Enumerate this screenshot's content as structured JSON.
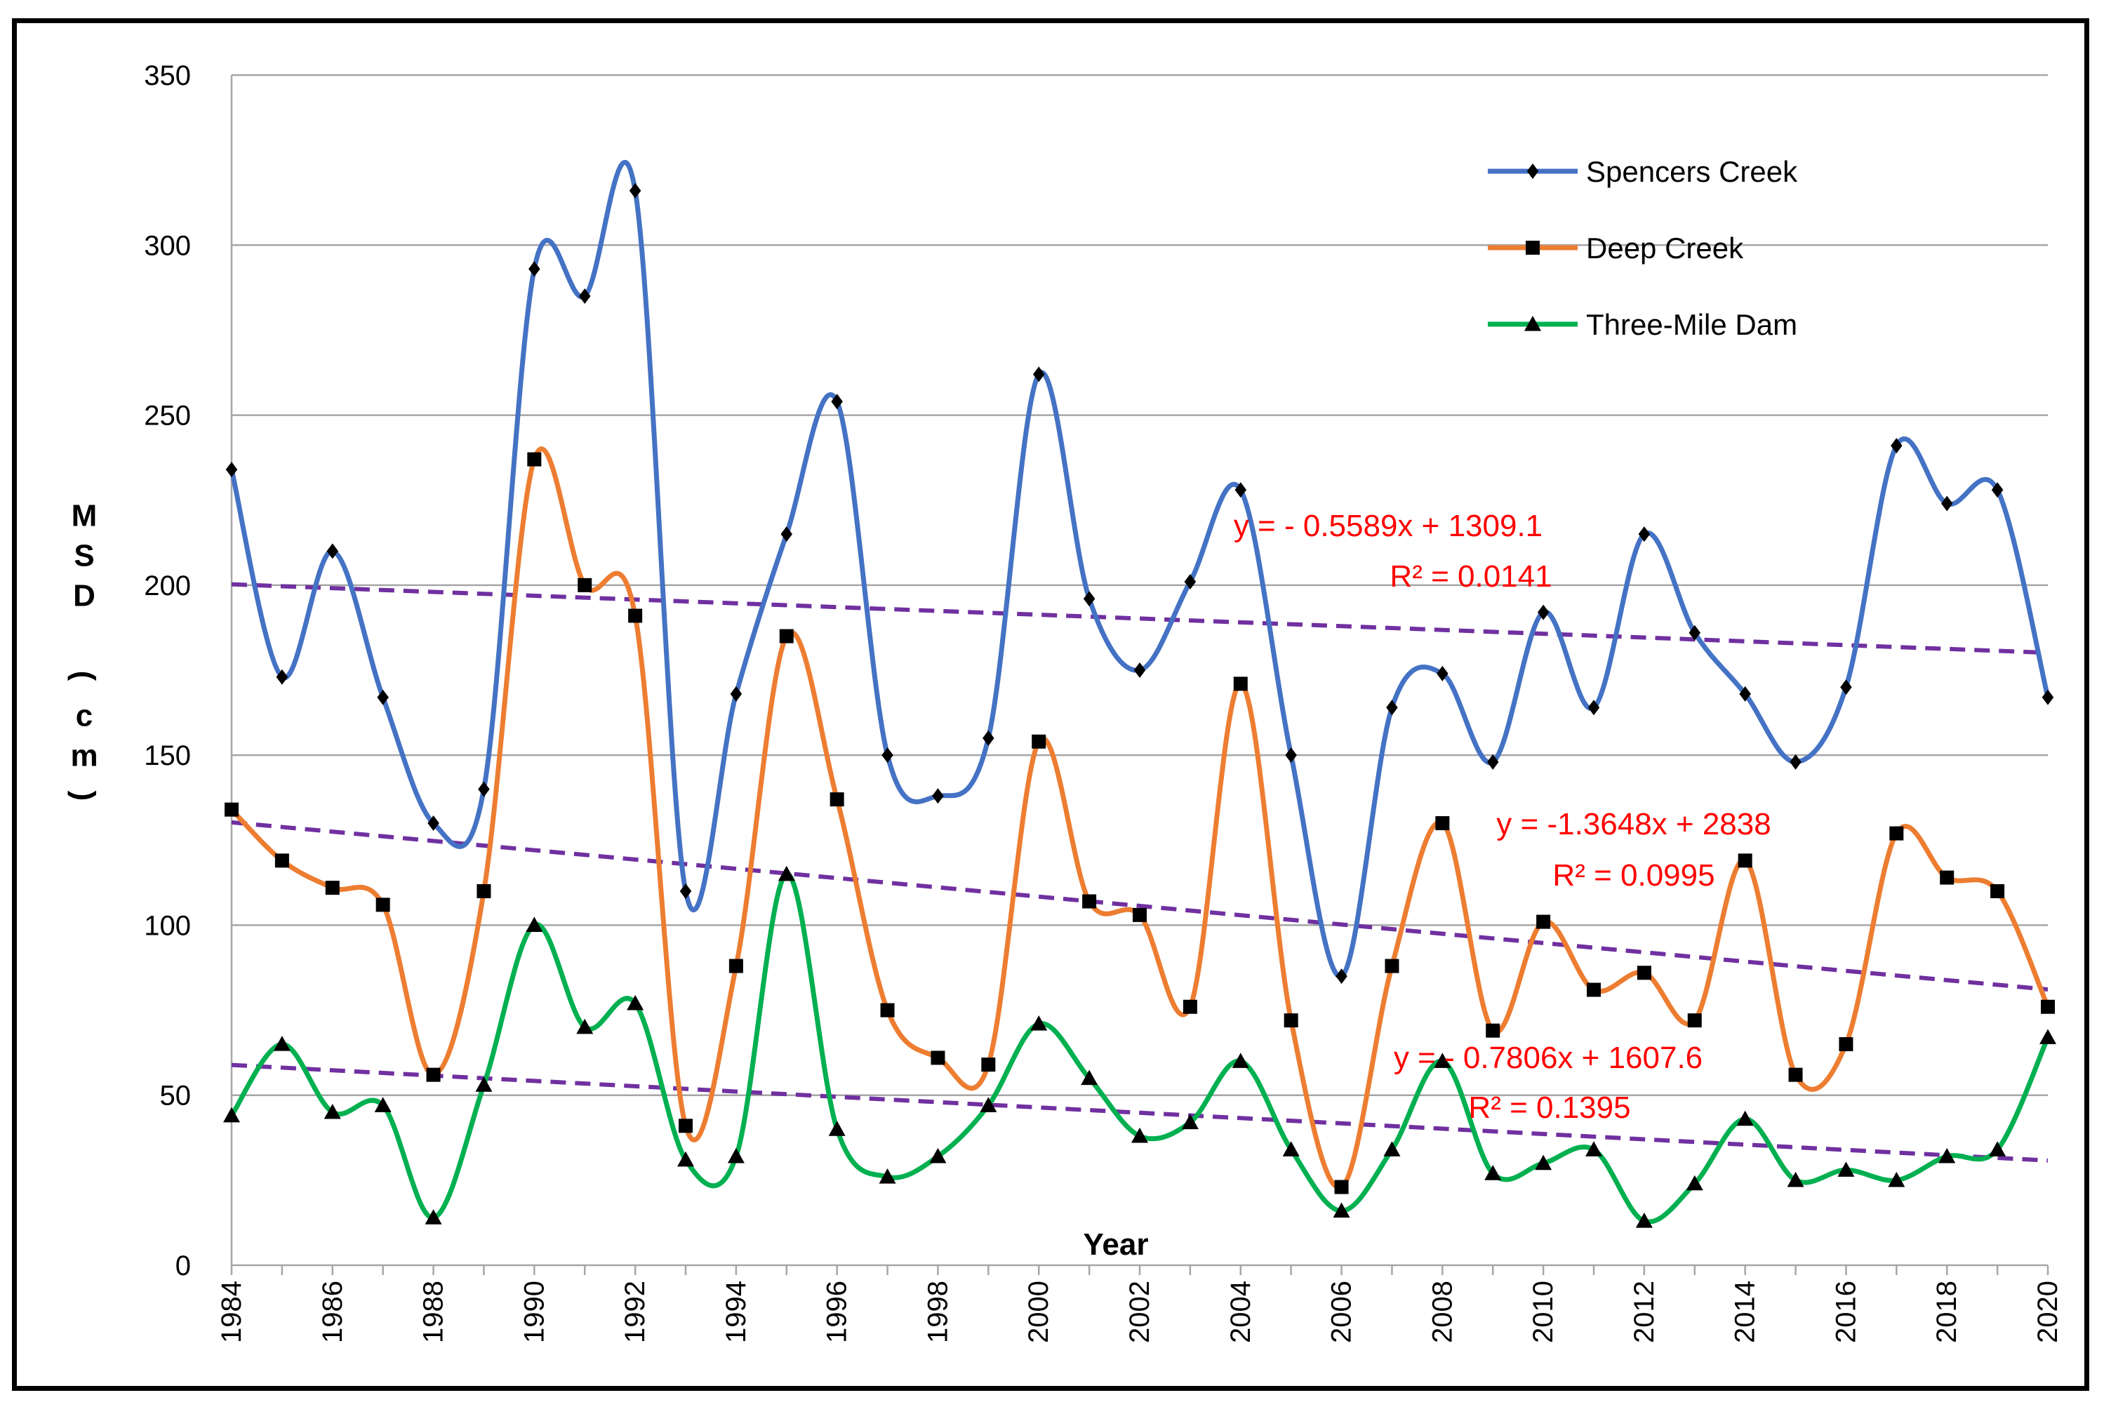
{
  "chart_data": {
    "type": "line",
    "title": "",
    "xlabel": "Year",
    "ylabel": "MSD (cm)",
    "ylabel_chars": [
      "M",
      "S",
      "D",
      "",
      "(",
      "c",
      "m",
      ")"
    ],
    "xlim": [
      1984,
      2020
    ],
    "ylim": [
      0,
      350
    ],
    "yticks": [
      0,
      50,
      100,
      150,
      200,
      250,
      300,
      350
    ],
    "xticks": [
      1984,
      1986,
      1988,
      1990,
      1992,
      1994,
      1996,
      1998,
      2000,
      2002,
      2004,
      2006,
      2008,
      2010,
      2012,
      2014,
      2016,
      2018,
      2020
    ],
    "grid": "horizontal",
    "legend_position": "top-right",
    "x": [
      1984,
      1985,
      1986,
      1987,
      1988,
      1989,
      1990,
      1991,
      1992,
      1993,
      1994,
      1995,
      1996,
      1997,
      1998,
      1999,
      2000,
      2001,
      2002,
      2003,
      2004,
      2005,
      2006,
      2007,
      2008,
      2009,
      2010,
      2011,
      2012,
      2013,
      2014,
      2015,
      2016,
      2017,
      2018,
      2019,
      2020
    ],
    "series": [
      {
        "name": "Spencers Creek",
        "color": "#4472c4",
        "marker": "diamond",
        "values": [
          234,
          173,
          210,
          167,
          130,
          140,
          293,
          285,
          316,
          110,
          168,
          215,
          254,
          150,
          138,
          155,
          262,
          196,
          175,
          201,
          228,
          150,
          85,
          164,
          174,
          148,
          192,
          164,
          215,
          186,
          168,
          148,
          170,
          241,
          224,
          228,
          167
        ],
        "trend": {
          "slope": -0.5589,
          "intercept": 1309.1,
          "r2": 0.0141,
          "equation": "y = - 0.5589x + 1309.1",
          "r2_label": "R² = 0.0141"
        }
      },
      {
        "name": "Deep Creek",
        "color": "#ed7d31",
        "marker": "square",
        "values": [
          134,
          119,
          111,
          106,
          56,
          110,
          237,
          200,
          191,
          41,
          88,
          185,
          137,
          75,
          61,
          59,
          154,
          107,
          103,
          76,
          171,
          72,
          23,
          88,
          130,
          69,
          101,
          81,
          86,
          72,
          119,
          56,
          65,
          127,
          114,
          110,
          76
        ],
        "trend": {
          "slope": -1.3648,
          "intercept": 2838,
          "r2": 0.0995,
          "equation": "y = -1.3648x + 2838",
          "r2_label": "R² = 0.0995"
        }
      },
      {
        "name": "Three-Mile Dam",
        "color": "#00b050",
        "marker": "triangle",
        "values": [
          44,
          65,
          45,
          47,
          14,
          53,
          100,
          70,
          77,
          31,
          32,
          115,
          40,
          26,
          32,
          47,
          71,
          55,
          38,
          42,
          60,
          34,
          16,
          34,
          60,
          27,
          30,
          34,
          13,
          24,
          43,
          25,
          28,
          25,
          32,
          34,
          67
        ],
        "trend": {
          "slope": -0.7806,
          "intercept": 1607.6,
          "r2": 0.1395,
          "equation": "y = - 0.7806x + 1607.6",
          "r2_label": "R² = 0.1395"
        }
      }
    ],
    "trend_color": "#7030a0",
    "annotation_color": "#ff0000"
  }
}
